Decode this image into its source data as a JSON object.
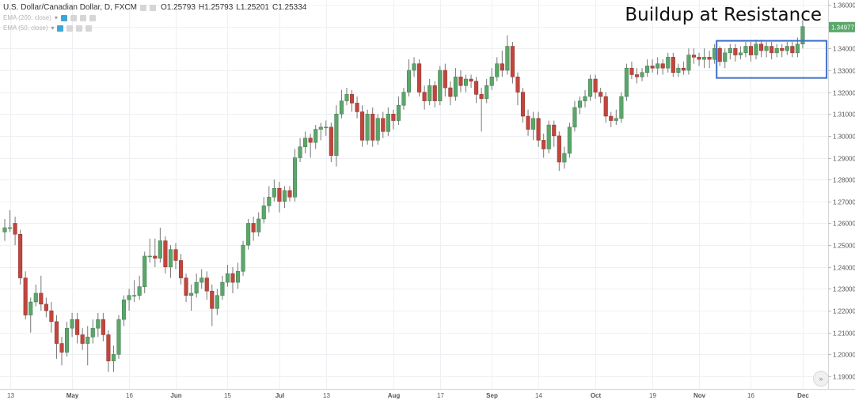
{
  "header": {
    "symbol": "U.S. Dollar/Canadian Dollar, D, FXCM",
    "ohlc": {
      "o": "O1.25793",
      "h": "H1.25793",
      "l": "L1.25201",
      "c": "C1.25334"
    },
    "indicators": [
      {
        "label": "EMA (200, close)"
      },
      {
        "label": "EMA (50, close)"
      }
    ]
  },
  "overlay_title": "Buildup at Resistance",
  "scroll_icon": "double-chevron-right-icon",
  "colors": {
    "up": "#5ba66a",
    "down": "#c0463e",
    "box": "#3d6fc9",
    "price_tag": "#5ba66a"
  },
  "chart_data": {
    "type": "candlestick",
    "y_axis": {
      "min": 1.19,
      "max": 1.36,
      "ticks": [
        "1.19000",
        "1.20000",
        "1.21000",
        "1.22000",
        "1.23000",
        "1.24000",
        "1.25000",
        "1.26000",
        "1.27000",
        "1.28000",
        "1.29000",
        "1.30000",
        "1.31000",
        "1.32000",
        "1.33000",
        "1.34000",
        "1.35000",
        "1.36000"
      ]
    },
    "x_axis": {
      "ticks": [
        {
          "label": "13",
          "i": 1,
          "bold": false
        },
        {
          "label": "May",
          "i": 13,
          "bold": true
        },
        {
          "label": "16",
          "i": 24,
          "bold": false
        },
        {
          "label": "Jun",
          "i": 33,
          "bold": true
        },
        {
          "label": "15",
          "i": 43,
          "bold": false
        },
        {
          "label": "Jul",
          "i": 53,
          "bold": true
        },
        {
          "label": "13",
          "i": 62,
          "bold": false
        },
        {
          "label": "Aug",
          "i": 75,
          "bold": true
        },
        {
          "label": "17",
          "i": 84,
          "bold": false
        },
        {
          "label": "Sep",
          "i": 94,
          "bold": true
        },
        {
          "label": "14",
          "i": 103,
          "bold": false
        },
        {
          "label": "Oct",
          "i": 114,
          "bold": true
        },
        {
          "label": "19",
          "i": 125,
          "bold": false
        },
        {
          "label": "Nov",
          "i": 134,
          "bold": true
        },
        {
          "label": "16",
          "i": 144,
          "bold": false
        },
        {
          "label": "Dec",
          "i": 154,
          "bold": true
        }
      ]
    },
    "last_price": "1.34977",
    "resistance_box": {
      "i_start": 138,
      "i_end": 158,
      "price_high": 1.3435,
      "price_low": 1.3265
    },
    "candles": [
      [
        1.256,
        1.258,
        1.262,
        1.252
      ],
      [
        1.258,
        1.258,
        1.266,
        1.256
      ],
      [
        1.26,
        1.255,
        1.263,
        1.25
      ],
      [
        1.255,
        1.235,
        1.257,
        1.232
      ],
      [
        1.235,
        1.218,
        1.238,
        1.216
      ],
      [
        1.218,
        1.224,
        1.226,
        1.21
      ],
      [
        1.224,
        1.228,
        1.232,
        1.222
      ],
      [
        1.228,
        1.223,
        1.236,
        1.22
      ],
      [
        1.223,
        1.22,
        1.226,
        1.217
      ],
      [
        1.22,
        1.215,
        1.224,
        1.21
      ],
      [
        1.215,
        1.205,
        1.218,
        1.198
      ],
      [
        1.205,
        1.201,
        1.208,
        1.195
      ],
      [
        1.201,
        1.212,
        1.215,
        1.199
      ],
      [
        1.212,
        1.216,
        1.219,
        1.208
      ],
      [
        1.216,
        1.209,
        1.219,
        1.205
      ],
      [
        1.209,
        1.205,
        1.212,
        1.202
      ],
      [
        1.205,
        1.208,
        1.213,
        1.195
      ],
      [
        1.208,
        1.212,
        1.216,
        1.205
      ],
      [
        1.212,
        1.216,
        1.219,
        1.208
      ],
      [
        1.216,
        1.209,
        1.219,
        1.206
      ],
      [
        1.209,
        1.197,
        1.211,
        1.192
      ],
      [
        1.197,
        1.2,
        1.204,
        1.192
      ],
      [
        1.2,
        1.216,
        1.218,
        1.198
      ],
      [
        1.216,
        1.225,
        1.227,
        1.213
      ],
      [
        1.225,
        1.227,
        1.23,
        1.22
      ],
      [
        1.227,
        1.227,
        1.234,
        1.224
      ],
      [
        1.227,
        1.231,
        1.236,
        1.225
      ],
      [
        1.231,
        1.245,
        1.247,
        1.228
      ],
      [
        1.245,
        1.245,
        1.253,
        1.242
      ],
      [
        1.245,
        1.244,
        1.253,
        1.24
      ],
      [
        1.244,
        1.252,
        1.258,
        1.242
      ],
      [
        1.252,
        1.24,
        1.254,
        1.237
      ],
      [
        1.24,
        1.248,
        1.25,
        1.235
      ],
      [
        1.248,
        1.243,
        1.251,
        1.239
      ],
      [
        1.243,
        1.235,
        1.246,
        1.232
      ],
      [
        1.235,
        1.227,
        1.237,
        1.224
      ],
      [
        1.227,
        1.228,
        1.232,
        1.22
      ],
      [
        1.228,
        1.233,
        1.237,
        1.226
      ],
      [
        1.233,
        1.235,
        1.239,
        1.23
      ],
      [
        1.235,
        1.229,
        1.238,
        1.225
      ],
      [
        1.229,
        1.221,
        1.232,
        1.213
      ],
      [
        1.221,
        1.227,
        1.23,
        1.218
      ],
      [
        1.227,
        1.233,
        1.236,
        1.225
      ],
      [
        1.233,
        1.237,
        1.241,
        1.231
      ],
      [
        1.237,
        1.233,
        1.24,
        1.228
      ],
      [
        1.233,
        1.238,
        1.242,
        1.23
      ],
      [
        1.238,
        1.25,
        1.252,
        1.236
      ],
      [
        1.25,
        1.26,
        1.262,
        1.248
      ],
      [
        1.26,
        1.256,
        1.263,
        1.252
      ],
      [
        1.256,
        1.262,
        1.265,
        1.254
      ],
      [
        1.262,
        1.268,
        1.272,
        1.26
      ],
      [
        1.268,
        1.272,
        1.277,
        1.265
      ],
      [
        1.272,
        1.276,
        1.28,
        1.27
      ],
      [
        1.276,
        1.27,
        1.279,
        1.265
      ],
      [
        1.27,
        1.275,
        1.277,
        1.267
      ],
      [
        1.275,
        1.272,
        1.277,
        1.27
      ],
      [
        1.272,
        1.29,
        1.294,
        1.27
      ],
      [
        1.29,
        1.295,
        1.299,
        1.288
      ],
      [
        1.295,
        1.299,
        1.302,
        1.292
      ],
      [
        1.299,
        1.297,
        1.301,
        1.29
      ],
      [
        1.297,
        1.303,
        1.305,
        1.294
      ],
      [
        1.303,
        1.304,
        1.306,
        1.298
      ],
      [
        1.304,
        1.304,
        1.307,
        1.3
      ],
      [
        1.304,
        1.291,
        1.306,
        1.288
      ],
      [
        1.291,
        1.31,
        1.314,
        1.286
      ],
      [
        1.31,
        1.316,
        1.321,
        1.308
      ],
      [
        1.316,
        1.319,
        1.322,
        1.314
      ],
      [
        1.319,
        1.315,
        1.321,
        1.311
      ],
      [
        1.315,
        1.311,
        1.318,
        1.308
      ],
      [
        1.311,
        1.298,
        1.314,
        1.295
      ],
      [
        1.298,
        1.31,
        1.312,
        1.296
      ],
      [
        1.31,
        1.298,
        1.313,
        1.295
      ],
      [
        1.298,
        1.308,
        1.31,
        1.296
      ],
      [
        1.308,
        1.302,
        1.311,
        1.299
      ],
      [
        1.302,
        1.31,
        1.313,
        1.3
      ],
      [
        1.31,
        1.307,
        1.312,
        1.303
      ],
      [
        1.307,
        1.314,
        1.318,
        1.305
      ],
      [
        1.314,
        1.32,
        1.322,
        1.312
      ],
      [
        1.32,
        1.33,
        1.335,
        1.318
      ],
      [
        1.33,
        1.333,
        1.336,
        1.327
      ],
      [
        1.333,
        1.32,
        1.335,
        1.318
      ],
      [
        1.32,
        1.316,
        1.323,
        1.312
      ],
      [
        1.316,
        1.323,
        1.326,
        1.314
      ],
      [
        1.323,
        1.316,
        1.325,
        1.313
      ],
      [
        1.316,
        1.33,
        1.332,
        1.314
      ],
      [
        1.33,
        1.322,
        1.333,
        1.318
      ],
      [
        1.322,
        1.318,
        1.325,
        1.314
      ],
      [
        1.318,
        1.327,
        1.331,
        1.316
      ],
      [
        1.327,
        1.323,
        1.33,
        1.32
      ],
      [
        1.323,
        1.326,
        1.328,
        1.32
      ],
      [
        1.326,
        1.325,
        1.328,
        1.322
      ],
      [
        1.325,
        1.319,
        1.327,
        1.315
      ],
      [
        1.319,
        1.317,
        1.322,
        1.302
      ],
      [
        1.317,
        1.323,
        1.326,
        1.315
      ],
      [
        1.323,
        1.327,
        1.331,
        1.321
      ],
      [
        1.327,
        1.333,
        1.336,
        1.325
      ],
      [
        1.333,
        1.33,
        1.339,
        1.327
      ],
      [
        1.33,
        1.341,
        1.346,
        1.328
      ],
      [
        1.341,
        1.327,
        1.343,
        1.324
      ],
      [
        1.327,
        1.32,
        1.329,
        1.314
      ],
      [
        1.32,
        1.309,
        1.322,
        1.306
      ],
      [
        1.309,
        1.303,
        1.312,
        1.3
      ],
      [
        1.303,
        1.308,
        1.311,
        1.298
      ],
      [
        1.308,
        1.298,
        1.311,
        1.295
      ],
      [
        1.298,
        1.294,
        1.301,
        1.29
      ],
      [
        1.294,
        1.305,
        1.307,
        1.292
      ],
      [
        1.305,
        1.3,
        1.307,
        1.295
      ],
      [
        1.3,
        1.288,
        1.302,
        1.284
      ],
      [
        1.288,
        1.292,
        1.295,
        1.285
      ],
      [
        1.292,
        1.304,
        1.306,
        1.29
      ],
      [
        1.304,
        1.313,
        1.316,
        1.302
      ],
      [
        1.313,
        1.316,
        1.318,
        1.31
      ],
      [
        1.316,
        1.318,
        1.321,
        1.313
      ],
      [
        1.318,
        1.326,
        1.328,
        1.316
      ],
      [
        1.326,
        1.32,
        1.328,
        1.317
      ],
      [
        1.32,
        1.318,
        1.322,
        1.315
      ],
      [
        1.318,
        1.309,
        1.32,
        1.306
      ],
      [
        1.309,
        1.307,
        1.311,
        1.304
      ],
      [
        1.307,
        1.308,
        1.312,
        1.305
      ],
      [
        1.308,
        1.318,
        1.32,
        1.306
      ],
      [
        1.318,
        1.331,
        1.333,
        1.316
      ],
      [
        1.331,
        1.328,
        1.334,
        1.326
      ],
      [
        1.328,
        1.327,
        1.331,
        1.324
      ],
      [
        1.327,
        1.329,
        1.331,
        1.325
      ],
      [
        1.329,
        1.332,
        1.335,
        1.327
      ],
      [
        1.332,
        1.331,
        1.335,
        1.329
      ],
      [
        1.331,
        1.333,
        1.336,
        1.328
      ],
      [
        1.333,
        1.331,
        1.335,
        1.328
      ],
      [
        1.331,
        1.336,
        1.338,
        1.329
      ],
      [
        1.336,
        1.329,
        1.338,
        1.327
      ],
      [
        1.329,
        1.331,
        1.333,
        1.327
      ],
      [
        1.331,
        1.33,
        1.334,
        1.328
      ],
      [
        1.33,
        1.337,
        1.34,
        1.328
      ],
      [
        1.337,
        1.336,
        1.34,
        1.333
      ],
      [
        1.336,
        1.335,
        1.338,
        1.332
      ],
      [
        1.335,
        1.336,
        1.34,
        1.331
      ],
      [
        1.336,
        1.335,
        1.339,
        1.331
      ],
      [
        1.335,
        1.34,
        1.342,
        1.333
      ],
      [
        1.34,
        1.334,
        1.341,
        1.332
      ],
      [
        1.334,
        1.338,
        1.34,
        1.331
      ],
      [
        1.338,
        1.34,
        1.342,
        1.335
      ],
      [
        1.34,
        1.337,
        1.342,
        1.334
      ],
      [
        1.337,
        1.338,
        1.341,
        1.335
      ],
      [
        1.338,
        1.341,
        1.343,
        1.336
      ],
      [
        1.341,
        1.337,
        1.343,
        1.334
      ],
      [
        1.337,
        1.342,
        1.344,
        1.335
      ],
      [
        1.342,
        1.339,
        1.344,
        1.336
      ],
      [
        1.339,
        1.341,
        1.343,
        1.336
      ],
      [
        1.341,
        1.338,
        1.343,
        1.335
      ],
      [
        1.338,
        1.34,
        1.342,
        1.336
      ],
      [
        1.34,
        1.339,
        1.342,
        1.336
      ],
      [
        1.339,
        1.341,
        1.343,
        1.337
      ],
      [
        1.341,
        1.338,
        1.343,
        1.336
      ],
      [
        1.338,
        1.342,
        1.345,
        1.336
      ],
      [
        1.342,
        1.35,
        1.353,
        1.34
      ]
    ]
  }
}
